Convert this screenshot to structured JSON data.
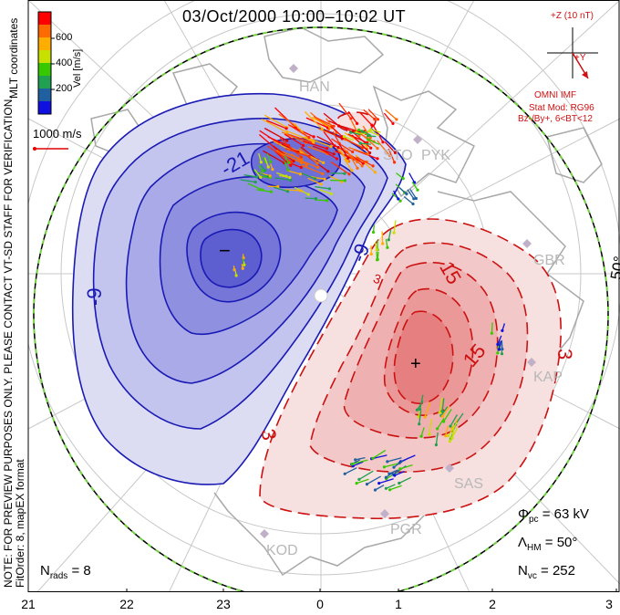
{
  "title": "03/Oct/2000 10:00–10:02 UT",
  "colorbar": {
    "label": "Vel [m/s]",
    "ticks": [
      "600",
      "400",
      "200"
    ],
    "colors": [
      "#ff0000",
      "#ff6a00",
      "#ffae00",
      "#c8e000",
      "#38c800",
      "#20a050",
      "#2060a0",
      "#1010e0"
    ]
  },
  "coordinate_label": "MLT coordinates",
  "reference_vector": {
    "label": "1000 m/s",
    "color": "#e00000"
  },
  "imf": {
    "z_label": "+Z (10 nT)",
    "y_label": "+Y",
    "source": "OMNI IMF",
    "model": "Stat Mod: RG96",
    "condition": "Bz-/By+, 6<BT<12"
  },
  "watermark": "NOTE: FOR PREVIEW PURPOSES ONLY. PLEASE CONTACT VT-SD STAFF FOR VERIFICATION.",
  "fit_order": "FitOrder: 8, mapEX format",
  "stations": [
    "HAN",
    "STO",
    "PYK",
    "GBR",
    "KAP",
    "SAS",
    "PGR",
    "KOD"
  ],
  "latitude_label": "50°",
  "contours": {
    "negative": [
      "-21",
      "-9",
      "-9"
    ],
    "positive": [
      "15",
      "15",
      "3",
      "3",
      "3"
    ],
    "min_marker": "−",
    "max_marker": "+"
  },
  "stats": {
    "phi_symbol": "Φ",
    "phi_sub": "pc",
    "phi_value": "= 63 kV",
    "lambda_symbol": "Λ",
    "lambda_sub": "HM",
    "lambda_value": "= 50°",
    "nvc_symbol": "N",
    "nvc_sub": "vc",
    "nvc_value": "= 252",
    "nrads_symbol": "N",
    "nrads_sub": "rads",
    "nrads_value": "= 8"
  },
  "mlt_ticks": [
    "21",
    "22",
    "23",
    "0",
    "1",
    "2",
    "3"
  ],
  "colors": {
    "negative_line": "#1a1ab4",
    "positive_line": "#cc1111",
    "grid": "#c8c8c8",
    "land": "#a8a8a8",
    "station": "#c0b0c8",
    "boundary": "#70d040"
  }
}
